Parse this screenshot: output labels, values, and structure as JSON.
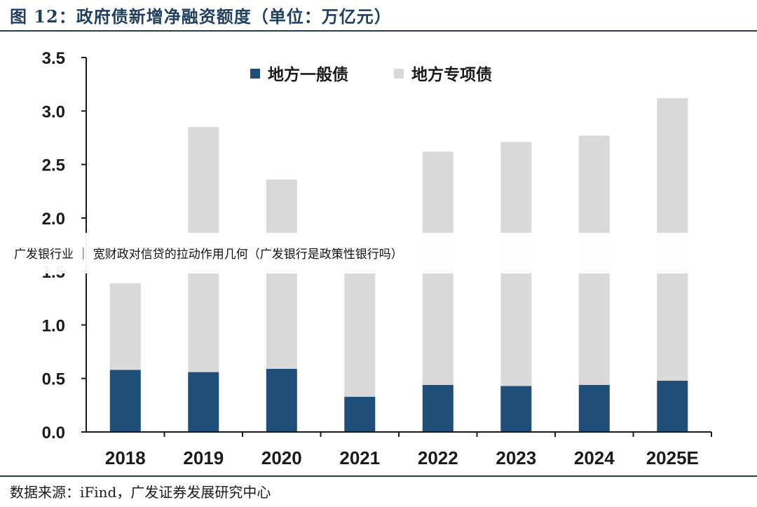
{
  "figure": {
    "title": "图 12：政府债新增净融资额度（单位：万亿元）",
    "source": "数据来源：iFind，广发证券发展研究中心"
  },
  "banner": {
    "text": "广发银行业 ｜ 宽财政对信贷的拉动作用几何（广发银行是政策性银行吗）"
  },
  "chart_data": {
    "type": "bar",
    "stacked": true,
    "categories": [
      "2018",
      "2019",
      "2020",
      "2021",
      "2022",
      "2023",
      "2024",
      "2025E"
    ],
    "series": [
      {
        "name": "地方一般债",
        "color": "#1f4e79",
        "values": [
          0.58,
          0.56,
          0.59,
          0.33,
          0.44,
          0.43,
          0.44,
          0.48
        ]
      },
      {
        "name": "地方专项债",
        "color": "#d9d9d9",
        "values": [
          0.81,
          2.29,
          1.77,
          1.42,
          2.18,
          2.28,
          2.33,
          2.64
        ]
      }
    ],
    "ylim": [
      0,
      3.5
    ],
    "yticks": [
      "0.0",
      "0.5",
      "1.0",
      "1.5",
      "2.0",
      "2.5",
      "3.0",
      "3.5"
    ],
    "grid": false,
    "legend_position": "top"
  }
}
